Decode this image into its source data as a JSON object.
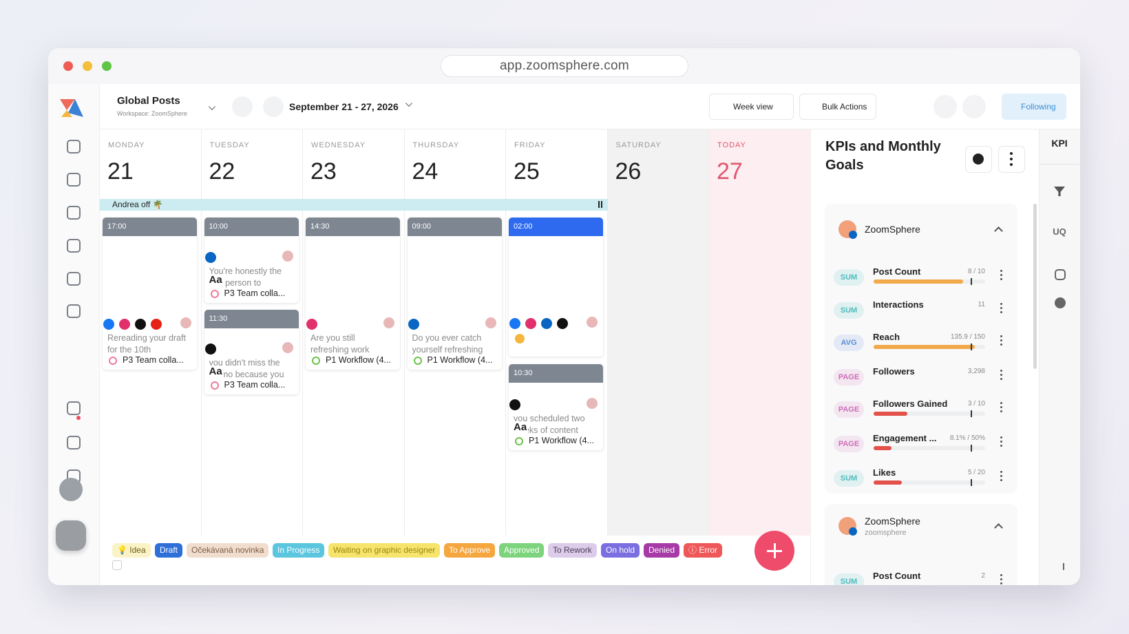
{
  "browser": {
    "url": "app.zoomsphere.com"
  },
  "header": {
    "title": "Global Posts",
    "workspace": "Workspace: ZoomSphere",
    "date_range": "September 21 - 27, 2026",
    "view": "Week view",
    "bulk": "Bulk Actions",
    "following": "Following"
  },
  "event": {
    "label": "Andrea off 🌴"
  },
  "days": [
    {
      "name": "MONDAY",
      "date": "21",
      "posts": [
        {
          "time": "17:00",
          "text": "Rereading your draft for the 10th",
          "workflow": "P3 Team colla..."
        }
      ]
    },
    {
      "name": "TUESDAY",
      "date": "22",
      "posts": [
        {
          "time": "10:00",
          "text": "You're honestly the first person to",
          "media": "Aa",
          "workflow": "P3 Team colla..."
        },
        {
          "time": "11:30",
          "text": "you didn't miss the memo because you",
          "media": "Aa",
          "workflow": "P3 Team colla..."
        }
      ]
    },
    {
      "name": "WEDNESDAY",
      "date": "23",
      "posts": [
        {
          "time": "14:30",
          "text": "Are you still refreshing work",
          "workflow": "P1 Workflow (4..."
        }
      ]
    },
    {
      "name": "THURSDAY",
      "date": "24",
      "posts": [
        {
          "time": "09:00",
          "text": "Do you ever catch yourself refreshing",
          "workflow": "P1 Workflow (4..."
        }
      ]
    },
    {
      "name": "FRIDAY",
      "date": "25",
      "posts": [
        {
          "time": "02:00"
        },
        {
          "time": "10:30",
          "text": "you scheduled two weeks of content",
          "media": "Aa",
          "workflow": "P1 Workflow (4..."
        }
      ]
    },
    {
      "name": "SATURDAY",
      "date": "26",
      "posts": []
    },
    {
      "name": "TODAY",
      "date": "27",
      "posts": []
    }
  ],
  "statuses": [
    {
      "label": "💡 Idea",
      "bg": "#fbf3c8",
      "fg": "#6b5a10"
    },
    {
      "label": "Draft",
      "bg": "#2f6fd8",
      "fg": "#ffffff"
    },
    {
      "label": "Očekávaná novinka",
      "bg": "#f1ddcd",
      "fg": "#7a5a44"
    },
    {
      "label": "In Progress",
      "bg": "#5cc6df",
      "fg": "#ffffff"
    },
    {
      "label": "Waiting on graphic designer",
      "bg": "#f6e46c",
      "fg": "#9a8612"
    },
    {
      "label": "To Approve",
      "bg": "#f5a63f",
      "fg": "#ffffff"
    },
    {
      "label": "Approved",
      "bg": "#7dd47d",
      "fg": "#ffffff"
    },
    {
      "label": "To Rework",
      "bg": "#dccbe9",
      "fg": "#4a3d5a"
    },
    {
      "label": "On hold",
      "bg": "#7a6ee0",
      "fg": "#ffffff"
    },
    {
      "label": "Denied",
      "bg": "#a63aa6",
      "fg": "#ffffff"
    },
    {
      "label": "ⓘ Error",
      "bg": "#ef5858",
      "fg": "#ffffff"
    }
  ],
  "kpi": {
    "title": "KPIs and Monthly Goals",
    "tab": "KPI",
    "tab2": "UQ",
    "groups": [
      {
        "name": "ZoomSphere",
        "metrics": [
          {
            "badge": "SUM",
            "badge_color": "#4cbcbc",
            "name": "Post Count",
            "value": 8,
            "goal": 10,
            "label": "8 / 10",
            "color": "#f2a94a"
          },
          {
            "badge": "SUM",
            "badge_color": "#4cbcbc",
            "name": "Interactions",
            "value": 11
          },
          {
            "badge": "AVG",
            "badge_color": "#5a8fd8",
            "name": "Reach",
            "value": 135.9,
            "goal": 150,
            "label": "135.9 / 150",
            "color": "#f2a94a"
          },
          {
            "badge": "PAGE",
            "badge_color": "#cf6fb8",
            "name": "Followers",
            "value": 3298,
            "label": "3,298"
          },
          {
            "badge": "PAGE",
            "badge_color": "#cf6fb8",
            "name": "Followers Gained",
            "value": 3,
            "goal": 10,
            "label": "3 / 10",
            "color": "#e2514a"
          },
          {
            "badge": "PAGE",
            "badge_color": "#cf6fb8",
            "name": "Engagement ...",
            "value": 8.1,
            "goal": 50,
            "label": "8.1% / 50%",
            "color": "#e2514a"
          },
          {
            "badge": "SUM",
            "badge_color": "#4cbcbc",
            "name": "Likes",
            "value": 5,
            "goal": 20,
            "label": "5 / 20",
            "color": "#e2514a"
          }
        ]
      },
      {
        "name": "ZoomSphere",
        "sub": "zoomsphere",
        "metrics": [
          {
            "badge": "SUM",
            "badge_color": "#4cbcbc",
            "name": "Post Count",
            "value": 2
          }
        ]
      }
    ]
  }
}
